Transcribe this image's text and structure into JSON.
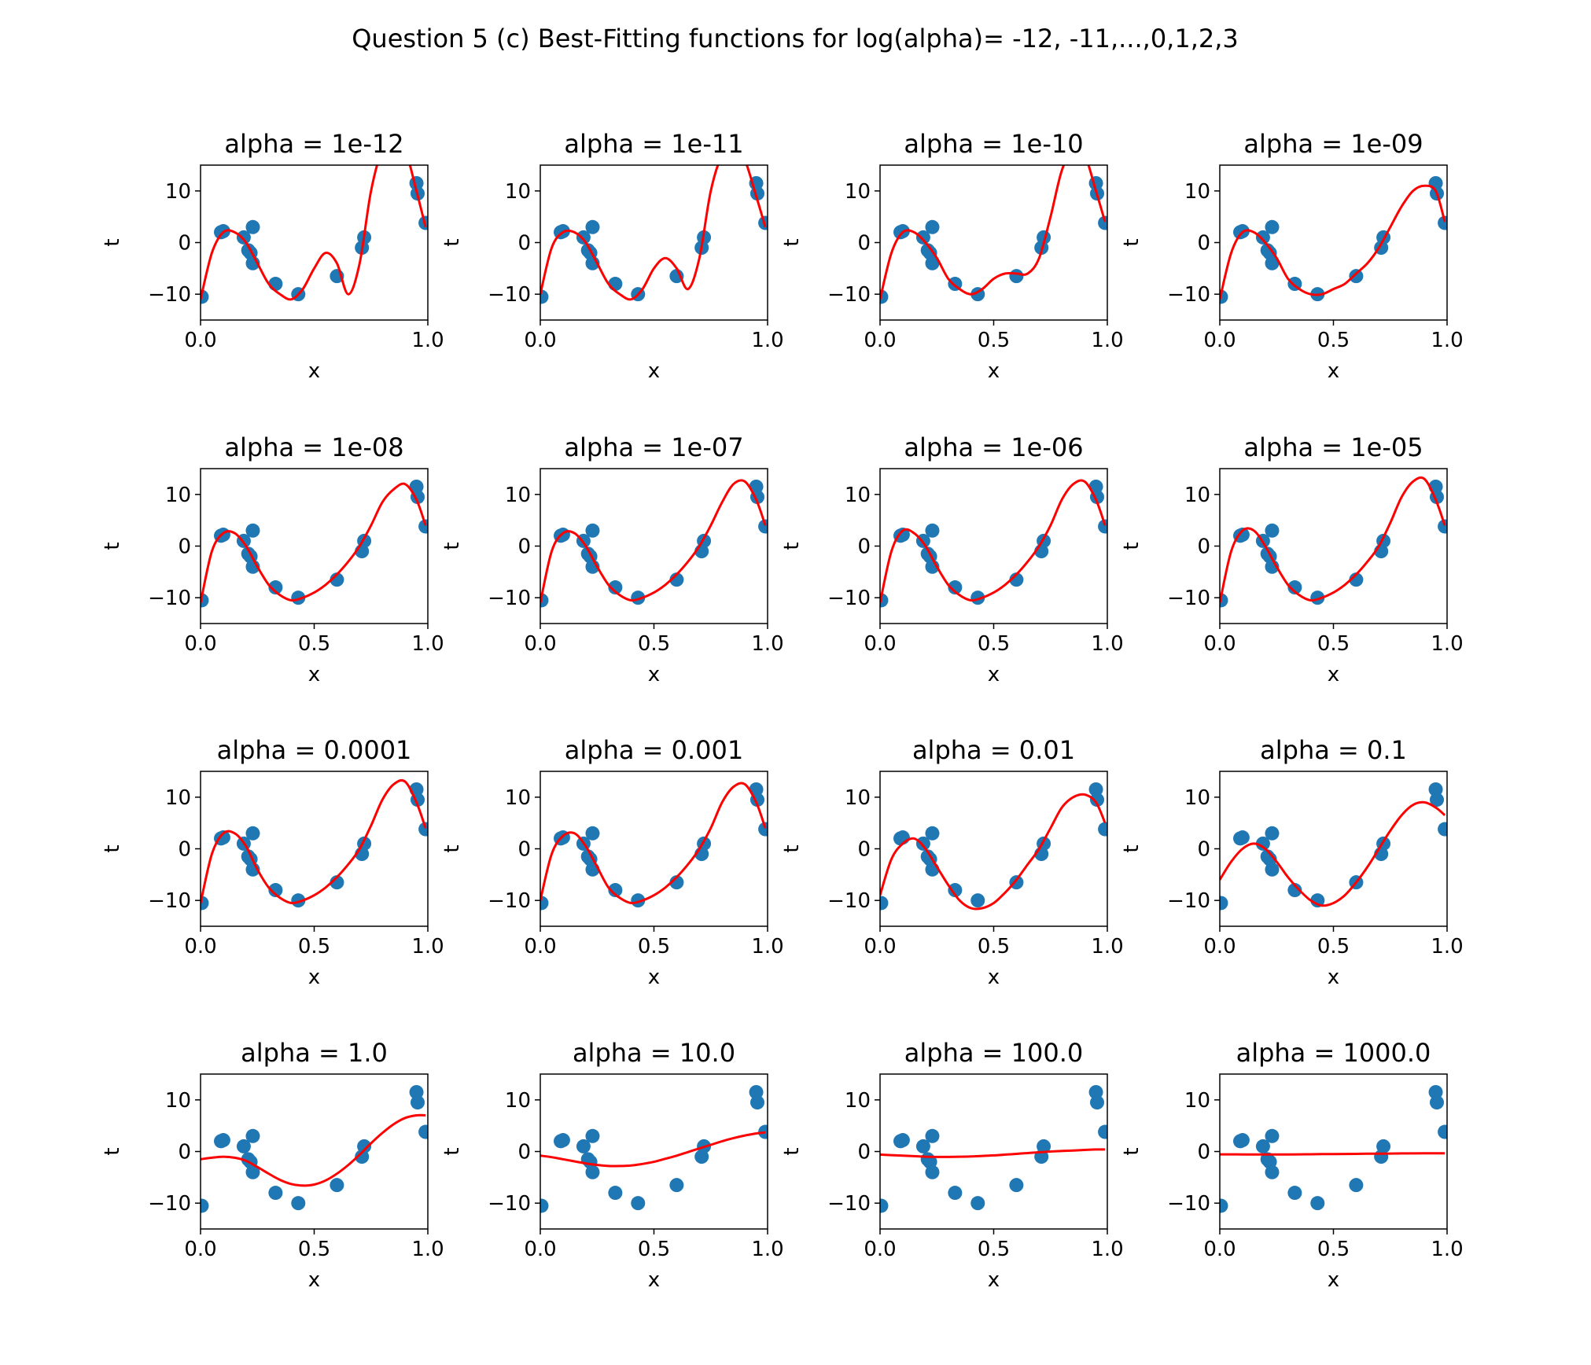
{
  "figure": {
    "suptitle": "Question 5 (c) Best-Fitting functions for log(alpha)= -12, -11,...,0,1,2,3"
  },
  "style": {
    "point_color": "#1f77b4",
    "curve_color": "#ff0000",
    "axis_color": "#000000"
  },
  "chart_data": [
    {
      "type": "scatter+line",
      "title": "alpha = 1e-12",
      "xlabel": "x",
      "ylabel": "t",
      "xlim": [
        0,
        1
      ],
      "ylim": [
        -15,
        15
      ],
      "xticks": [
        "0.0",
        "1.0"
      ],
      "yticks": [
        "10",
        "0",
        "−10"
      ],
      "curve": {
        "x": [
          0,
          0.05,
          0.1,
          0.15,
          0.2,
          0.25,
          0.3,
          0.35,
          0.4,
          0.45,
          0.5,
          0.55,
          0.6,
          0.65,
          0.7,
          0.75,
          0.8,
          0.85,
          0.9,
          0.95,
          0.99
        ],
        "y": [
          -11,
          -2,
          2,
          2,
          0,
          -4,
          -8,
          -10,
          -11,
          -9,
          -5,
          -2,
          -4,
          -10,
          -4,
          10,
          18,
          20,
          18,
          10,
          3
        ]
      }
    },
    {
      "type": "scatter+line",
      "title": "alpha = 1e-11",
      "xlabel": "x",
      "ylabel": "t",
      "xlim": [
        0,
        1
      ],
      "ylim": [
        -15,
        15
      ],
      "xticks": [
        "0.0",
        "1.0"
      ],
      "yticks": [
        "10",
        "0",
        "−10"
      ],
      "curve": {
        "x": [
          0,
          0.05,
          0.1,
          0.15,
          0.2,
          0.25,
          0.3,
          0.35,
          0.4,
          0.45,
          0.5,
          0.55,
          0.6,
          0.65,
          0.7,
          0.75,
          0.8,
          0.85,
          0.9,
          0.95,
          0.99
        ],
        "y": [
          -10,
          -1,
          2,
          2,
          0,
          -4,
          -8,
          -10,
          -11,
          -9,
          -5,
          -3,
          -5,
          -9,
          -3,
          10,
          17,
          19,
          16,
          9,
          3
        ]
      }
    },
    {
      "type": "scatter+line",
      "title": "alpha = 1e-10",
      "xlabel": "x",
      "ylabel": "t",
      "xlim": [
        0,
        1
      ],
      "ylim": [
        -15,
        15
      ],
      "xticks": [
        "0.0",
        "0.5",
        "1.0"
      ],
      "yticks": [
        "10",
        "0",
        "−10"
      ],
      "curve": {
        "x": [
          0,
          0.05,
          0.1,
          0.15,
          0.2,
          0.25,
          0.3,
          0.35,
          0.4,
          0.45,
          0.5,
          0.55,
          0.6,
          0.65,
          0.7,
          0.75,
          0.8,
          0.85,
          0.9,
          0.95,
          0.99
        ],
        "y": [
          -11,
          -2,
          2,
          2,
          0,
          -3,
          -7,
          -9,
          -10,
          -9,
          -7,
          -6,
          -6,
          -6,
          -3,
          5,
          14,
          18,
          17,
          10,
          4
        ]
      }
    },
    {
      "type": "scatter+line",
      "title": "alpha = 1e-09",
      "xlabel": "x",
      "ylabel": "t",
      "xlim": [
        0,
        1
      ],
      "ylim": [
        -15,
        15
      ],
      "xticks": [
        "0.0",
        "0.5",
        "1.0"
      ],
      "yticks": [
        "10",
        "0",
        "−10"
      ],
      "curve": {
        "x": [
          0,
          0.05,
          0.1,
          0.15,
          0.2,
          0.25,
          0.3,
          0.35,
          0.4,
          0.45,
          0.5,
          0.55,
          0.6,
          0.65,
          0.7,
          0.75,
          0.8,
          0.85,
          0.9,
          0.95,
          0.99
        ],
        "y": [
          -11,
          -2,
          2,
          2,
          0,
          -3,
          -7,
          -9,
          -10,
          -10,
          -9,
          -8,
          -6,
          -4,
          -1,
          3,
          7,
          10,
          11,
          10,
          4
        ]
      }
    },
    {
      "type": "scatter+line",
      "title": "alpha = 1e-08",
      "xlabel": "x",
      "ylabel": "t",
      "xlim": [
        0,
        1
      ],
      "ylim": [
        -15,
        15
      ],
      "xticks": [
        "0.0",
        "0.5",
        "1.0"
      ],
      "yticks": [
        "10",
        "0",
        "−10"
      ],
      "curve": {
        "x": [
          0,
          0.05,
          0.1,
          0.15,
          0.2,
          0.25,
          0.3,
          0.35,
          0.4,
          0.45,
          0.5,
          0.55,
          0.6,
          0.65,
          0.7,
          0.75,
          0.8,
          0.85,
          0.9,
          0.95,
          0.99
        ],
        "y": [
          -11,
          -1,
          2.5,
          2.5,
          0,
          -4,
          -7.5,
          -9.5,
          -10.5,
          -10,
          -9,
          -7.5,
          -5.5,
          -3,
          0,
          4,
          8.5,
          11,
          12,
          9,
          4
        ]
      }
    },
    {
      "type": "scatter+line",
      "title": "alpha = 1e-07",
      "xlabel": "x",
      "ylabel": "t",
      "xlim": [
        0,
        1
      ],
      "ylim": [
        -15,
        15
      ],
      "xticks": [
        "0.0",
        "0.5",
        "1.0"
      ],
      "yticks": [
        "10",
        "0",
        "−10"
      ],
      "curve": {
        "x": [
          0,
          0.05,
          0.1,
          0.15,
          0.2,
          0.25,
          0.3,
          0.35,
          0.4,
          0.45,
          0.5,
          0.55,
          0.6,
          0.65,
          0.7,
          0.75,
          0.8,
          0.85,
          0.9,
          0.95,
          0.99
        ],
        "y": [
          -11,
          -1,
          2.5,
          2.5,
          0,
          -4,
          -7.5,
          -9.5,
          -10.5,
          -10,
          -9,
          -7.5,
          -5.5,
          -3,
          0,
          4,
          8.5,
          12,
          12.5,
          9,
          4
        ]
      }
    },
    {
      "type": "scatter+line",
      "title": "alpha = 1e-06",
      "xlabel": "x",
      "ylabel": "t",
      "xlim": [
        0,
        1
      ],
      "ylim": [
        -15,
        15
      ],
      "xticks": [
        "0.0",
        "0.5",
        "1.0"
      ],
      "yticks": [
        "10",
        "0",
        "−10"
      ],
      "curve": {
        "x": [
          0,
          0.05,
          0.1,
          0.15,
          0.2,
          0.25,
          0.3,
          0.35,
          0.4,
          0.45,
          0.5,
          0.55,
          0.6,
          0.65,
          0.7,
          0.75,
          0.8,
          0.85,
          0.9,
          0.95,
          0.99
        ],
        "y": [
          -11,
          -1,
          3,
          2.5,
          0,
          -4,
          -7.5,
          -9.5,
          -10.5,
          -10,
          -9,
          -7.5,
          -5.5,
          -3,
          0,
          4,
          9,
          12,
          12.5,
          9,
          4
        ]
      }
    },
    {
      "type": "scatter+line",
      "title": "alpha = 1e-05",
      "xlabel": "x",
      "ylabel": "t",
      "xlim": [
        0,
        1
      ],
      "ylim": [
        -15,
        15
      ],
      "xticks": [
        "0.0",
        "0.5",
        "1.0"
      ],
      "yticks": [
        "10",
        "0",
        "−10"
      ],
      "curve": {
        "x": [
          0,
          0.05,
          0.1,
          0.15,
          0.2,
          0.25,
          0.3,
          0.35,
          0.4,
          0.45,
          0.5,
          0.55,
          0.6,
          0.65,
          0.7,
          0.75,
          0.8,
          0.85,
          0.9,
          0.95,
          0.99
        ],
        "y": [
          -11,
          -1,
          3,
          3,
          0,
          -4,
          -7.5,
          -9.5,
          -10.5,
          -10,
          -9,
          -7.5,
          -5.5,
          -3,
          0,
          4.5,
          9.5,
          12.5,
          13,
          9,
          4
        ]
      }
    },
    {
      "type": "scatter+line",
      "title": "alpha = 0.0001",
      "xlabel": "x",
      "ylabel": "t",
      "xlim": [
        0,
        1
      ],
      "ylim": [
        -15,
        15
      ],
      "xticks": [
        "0.0",
        "0.5",
        "1.0"
      ],
      "yticks": [
        "10",
        "0",
        "−10"
      ],
      "curve": {
        "x": [
          0,
          0.05,
          0.1,
          0.15,
          0.2,
          0.25,
          0.3,
          0.35,
          0.4,
          0.45,
          0.5,
          0.55,
          0.6,
          0.65,
          0.7,
          0.75,
          0.8,
          0.85,
          0.9,
          0.95,
          0.99
        ],
        "y": [
          -10.5,
          -1,
          3,
          3,
          0.5,
          -4,
          -7.5,
          -9.5,
          -10.5,
          -10,
          -9,
          -7.5,
          -5.5,
          -3,
          0,
          4.5,
          9.5,
          12.5,
          13,
          9,
          4
        ]
      }
    },
    {
      "type": "scatter+line",
      "title": "alpha = 0.001",
      "xlabel": "x",
      "ylabel": "t",
      "xlim": [
        0,
        1
      ],
      "ylim": [
        -15,
        15
      ],
      "xticks": [
        "0.0",
        "0.5",
        "1.0"
      ],
      "yticks": [
        "10",
        "0",
        "−10"
      ],
      "curve": {
        "x": [
          0,
          0.05,
          0.1,
          0.15,
          0.2,
          0.25,
          0.3,
          0.35,
          0.4,
          0.45,
          0.5,
          0.55,
          0.6,
          0.65,
          0.7,
          0.75,
          0.8,
          0.85,
          0.9,
          0.95,
          0.99
        ],
        "y": [
          -10,
          -1,
          2.5,
          3,
          0.5,
          -3.5,
          -7.5,
          -9.5,
          -10.5,
          -10,
          -9,
          -7.5,
          -5.5,
          -3,
          0,
          4,
          9,
          12,
          12.5,
          9,
          4
        ]
      }
    },
    {
      "type": "scatter+line",
      "title": "alpha = 0.01",
      "xlabel": "x",
      "ylabel": "t",
      "xlim": [
        0,
        1
      ],
      "ylim": [
        -15,
        15
      ],
      "xticks": [
        "0.0",
        "0.5",
        "1.0"
      ],
      "yticks": [
        "10",
        "0",
        "−10"
      ],
      "curve": {
        "x": [
          0,
          0.05,
          0.1,
          0.15,
          0.2,
          0.25,
          0.3,
          0.35,
          0.4,
          0.45,
          0.5,
          0.55,
          0.6,
          0.65,
          0.7,
          0.75,
          0.8,
          0.85,
          0.9,
          0.95,
          0.99
        ],
        "y": [
          -9,
          -2,
          1,
          2,
          0,
          -3.5,
          -7,
          -10,
          -11.5,
          -11.5,
          -10.5,
          -8.5,
          -6,
          -3,
          0,
          4,
          8,
          10,
          10.5,
          9,
          5
        ]
      }
    },
    {
      "type": "scatter+line",
      "title": "alpha = 0.1",
      "xlabel": "x",
      "ylabel": "t",
      "xlim": [
        0,
        1
      ],
      "ylim": [
        -15,
        15
      ],
      "xticks": [
        "0.0",
        "0.5",
        "1.0"
      ],
      "yticks": [
        "10",
        "0",
        "−10"
      ],
      "curve": {
        "x": [
          0,
          0.05,
          0.1,
          0.15,
          0.2,
          0.25,
          0.3,
          0.35,
          0.4,
          0.45,
          0.5,
          0.55,
          0.6,
          0.65,
          0.7,
          0.75,
          0.8,
          0.85,
          0.9,
          0.95,
          0.99
        ],
        "y": [
          -6,
          -2.5,
          0,
          1,
          0,
          -2.5,
          -5.5,
          -8,
          -10,
          -11,
          -10.5,
          -9,
          -6.5,
          -3.5,
          0,
          3.5,
          6.5,
          8.5,
          9,
          8,
          6.5
        ]
      }
    },
    {
      "type": "scatter+line",
      "title": "alpha = 1.0",
      "xlabel": "x",
      "ylabel": "t",
      "xlim": [
        0,
        1
      ],
      "ylim": [
        -15,
        15
      ],
      "xticks": [
        "0.0",
        "0.5",
        "1.0"
      ],
      "yticks": [
        "10",
        "0",
        "−10"
      ],
      "curve": {
        "x": [
          0,
          0.05,
          0.1,
          0.15,
          0.2,
          0.25,
          0.3,
          0.35,
          0.4,
          0.45,
          0.5,
          0.55,
          0.6,
          0.65,
          0.7,
          0.75,
          0.8,
          0.85,
          0.9,
          0.95,
          0.99
        ],
        "y": [
          -1.5,
          -1.2,
          -1,
          -1.2,
          -1.8,
          -3,
          -4.3,
          -5.5,
          -6.3,
          -6.6,
          -6.4,
          -5.6,
          -4.3,
          -2.6,
          -0.6,
          1.6,
          3.6,
          5.3,
          6.5,
          7,
          7
        ]
      }
    },
    {
      "type": "scatter+line",
      "title": "alpha = 10.0",
      "xlabel": "x",
      "ylabel": "t",
      "xlim": [
        0,
        1
      ],
      "ylim": [
        -15,
        15
      ],
      "xticks": [
        "0.0",
        "0.5",
        "1.0"
      ],
      "yticks": [
        "10",
        "0",
        "−10"
      ],
      "curve": {
        "x": [
          0,
          0.05,
          0.1,
          0.15,
          0.2,
          0.25,
          0.3,
          0.35,
          0.4,
          0.45,
          0.5,
          0.55,
          0.6,
          0.65,
          0.7,
          0.75,
          0.8,
          0.85,
          0.9,
          0.95,
          0.99
        ],
        "y": [
          -0.8,
          -1.1,
          -1.5,
          -1.9,
          -2.3,
          -2.6,
          -2.8,
          -2.8,
          -2.7,
          -2.4,
          -2,
          -1.4,
          -0.8,
          -0.1,
          0.6,
          1.3,
          2,
          2.6,
          3.1,
          3.5,
          3.7
        ]
      }
    },
    {
      "type": "scatter+line",
      "title": "alpha = 100.0",
      "xlabel": "x",
      "ylabel": "t",
      "xlim": [
        0,
        1
      ],
      "ylim": [
        -15,
        15
      ],
      "xticks": [
        "0.0",
        "0.5",
        "1.0"
      ],
      "yticks": [
        "10",
        "0",
        "−10"
      ],
      "curve": {
        "x": [
          0,
          0.05,
          0.1,
          0.15,
          0.2,
          0.25,
          0.3,
          0.35,
          0.4,
          0.45,
          0.5,
          0.55,
          0.6,
          0.65,
          0.7,
          0.75,
          0.8,
          0.85,
          0.9,
          0.95,
          0.99
        ],
        "y": [
          -0.6,
          -0.7,
          -0.8,
          -0.9,
          -1,
          -1.05,
          -1.05,
          -1,
          -0.95,
          -0.85,
          -0.75,
          -0.6,
          -0.45,
          -0.3,
          -0.15,
          0,
          0.1,
          0.2,
          0.3,
          0.4,
          0.4
        ]
      }
    },
    {
      "type": "scatter+line",
      "title": "alpha = 1000.0",
      "xlabel": "x",
      "ylabel": "t",
      "xlim": [
        0,
        1
      ],
      "ylim": [
        -15,
        15
      ],
      "xticks": [
        "0.0",
        "0.5",
        "1.0"
      ],
      "yticks": [
        "10",
        "0",
        "−10"
      ],
      "curve": {
        "x": [
          0,
          0.05,
          0.1,
          0.15,
          0.2,
          0.25,
          0.3,
          0.35,
          0.4,
          0.45,
          0.5,
          0.55,
          0.6,
          0.65,
          0.7,
          0.75,
          0.8,
          0.85,
          0.9,
          0.95,
          0.99
        ],
        "y": [
          -0.55,
          -0.55,
          -0.56,
          -0.57,
          -0.57,
          -0.57,
          -0.56,
          -0.55,
          -0.53,
          -0.51,
          -0.49,
          -0.47,
          -0.45,
          -0.43,
          -0.41,
          -0.39,
          -0.37,
          -0.36,
          -0.35,
          -0.34,
          -0.33
        ]
      }
    }
  ],
  "points": {
    "x": [
      0.005,
      0.09,
      0.1,
      0.19,
      0.21,
      0.22,
      0.23,
      0.23,
      0.33,
      0.43,
      0.6,
      0.71,
      0.72,
      0.95,
      0.955,
      0.99
    ],
    "t": [
      -10.5,
      2,
      2.2,
      1,
      -1.5,
      -2,
      3,
      -4,
      -8,
      -10,
      -6.5,
      -1,
      1,
      11.5,
      9.5,
      3.8
    ]
  }
}
